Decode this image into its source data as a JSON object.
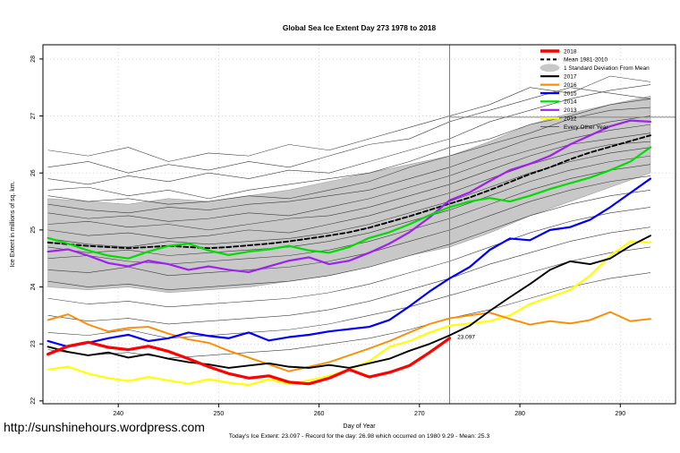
{
  "watermark": "http://sunshinehours.wordpress.com",
  "chart_data": {
    "type": "line",
    "title": "Global Sea Ice Extent Day 273 1978 to 2018",
    "xlabel": "Day of Year",
    "ylabel": "Ice Extent in millions of sq. km.",
    "caption": "Today's Ice Extent: 23.097  - Record for the day: 26.98 which occurred on 1980 9.29  - Mean: 25.3",
    "xlim": [
      232.5,
      295.5
    ],
    "ylim": [
      21.95,
      28.25
    ],
    "x_ticks": [
      240,
      250,
      260,
      270,
      280,
      290
    ],
    "y_ticks": [
      22,
      23,
      24,
      25,
      26,
      27,
      28
    ],
    "grid_style": "dotted",
    "legend_position": "top-right",
    "colors": {
      "grid": "#c9c9c9",
      "band_fill": "#c8c8c8",
      "band_edge": "#a0a0a0",
      "background_years": "#3d3d3d",
      "reference_line": "#808080",
      "annotation": "#ff0000"
    },
    "reference": {
      "vertical_line_day": 273,
      "record_line_value": 26.98
    },
    "annotation": {
      "text": "23.097",
      "day": 273.5,
      "value": 23.12
    },
    "x_start": 233,
    "x_step": 2,
    "series": [
      {
        "name": "2018",
        "color": "#ff0000",
        "width": 3.2,
        "values": [
          22.82,
          22.96,
          23.03,
          22.94,
          22.9,
          22.96,
          22.87,
          22.74,
          22.6,
          22.48,
          22.4,
          22.44,
          22.33,
          22.3,
          22.4,
          22.55,
          22.42,
          22.5,
          22.62,
          22.85,
          23.1
        ]
      },
      {
        "name": "Mean 1981-2010",
        "color": "#000000",
        "width": 1.9,
        "dash": "5,3",
        "values": [
          24.78,
          24.75,
          24.72,
          24.7,
          24.68,
          24.7,
          24.72,
          24.7,
          24.68,
          24.7,
          24.73,
          24.76,
          24.8,
          24.85,
          24.9,
          24.96,
          25.04,
          25.14,
          25.24,
          25.35,
          25.46,
          25.57,
          25.7,
          25.84,
          25.98,
          26.1,
          26.24,
          26.36,
          26.46,
          26.56,
          26.66
        ]
      },
      {
        "name": "2017",
        "color": "#000000",
        "width": 1.9,
        "values": [
          22.95,
          22.86,
          22.8,
          22.85,
          22.76,
          22.82,
          22.74,
          22.68,
          22.64,
          22.58,
          22.62,
          22.66,
          22.6,
          22.58,
          22.63,
          22.58,
          22.66,
          22.74,
          22.88,
          23.0,
          23.15,
          23.32,
          23.58,
          23.82,
          24.05,
          24.3,
          24.45,
          24.4,
          24.5,
          24.72,
          24.9
        ]
      },
      {
        "name": "2016",
        "color": "#ff8c00",
        "width": 1.9,
        "values": [
          23.42,
          23.52,
          23.34,
          23.22,
          23.28,
          23.3,
          23.18,
          23.08,
          23.02,
          22.88,
          22.76,
          22.64,
          22.52,
          22.6,
          22.68,
          22.8,
          22.92,
          23.05,
          23.2,
          23.35,
          23.45,
          23.5,
          23.55,
          23.44,
          23.34,
          23.4,
          23.36,
          23.42,
          23.56,
          23.4,
          23.44
        ]
      },
      {
        "name": "2015",
        "color": "#0000ff",
        "width": 2.2,
        "values": [
          23.05,
          22.95,
          23.02,
          23.1,
          23.16,
          23.05,
          23.1,
          23.2,
          23.14,
          23.1,
          23.2,
          23.06,
          23.12,
          23.16,
          23.22,
          23.26,
          23.3,
          23.42,
          23.66,
          23.92,
          24.15,
          24.35,
          24.65,
          24.85,
          24.82,
          25.0,
          25.05,
          25.18,
          25.4,
          25.65,
          25.9
        ]
      },
      {
        "name": "2014",
        "color": "#00dd00",
        "width": 2.2,
        "values": [
          24.86,
          24.76,
          24.64,
          24.55,
          24.5,
          24.62,
          24.72,
          24.76,
          24.64,
          24.56,
          24.62,
          24.66,
          24.72,
          24.64,
          24.6,
          24.7,
          24.86,
          24.96,
          25.1,
          25.26,
          25.4,
          25.5,
          25.56,
          25.5,
          25.6,
          25.72,
          25.82,
          25.92,
          26.05,
          26.2,
          26.45
        ]
      },
      {
        "name": "2013",
        "color": "#a020f0",
        "width": 2.2,
        "values": [
          24.62,
          24.66,
          24.55,
          24.42,
          24.36,
          24.46,
          24.4,
          24.3,
          24.36,
          24.3,
          24.26,
          24.36,
          24.46,
          24.52,
          24.4,
          24.46,
          24.6,
          24.76,
          24.96,
          25.22,
          25.52,
          25.66,
          25.86,
          26.05,
          26.16,
          26.3,
          26.5,
          26.66,
          26.82,
          26.92,
          26.9
        ]
      },
      {
        "name": "2012",
        "color": "#ffff00",
        "width": 2.2,
        "values": [
          22.55,
          22.6,
          22.48,
          22.4,
          22.35,
          22.42,
          22.36,
          22.3,
          22.38,
          22.32,
          22.28,
          22.38,
          22.3,
          22.36,
          22.44,
          22.55,
          22.7,
          22.95,
          23.05,
          23.2,
          23.32,
          23.36,
          23.4,
          23.5,
          23.7,
          23.82,
          23.95,
          24.2,
          24.55,
          24.8,
          24.78
        ]
      }
    ],
    "band": {
      "label": "1 Standard Deviation From Mean",
      "x_start": 233,
      "x_step": 4,
      "upper": [
        25.55,
        25.5,
        25.45,
        25.55,
        25.5,
        25.6,
        25.7,
        25.85,
        26.0,
        26.15,
        26.3,
        26.55,
        26.85,
        27.05,
        27.2,
        27.35
      ],
      "lower": [
        24.0,
        23.95,
        24.0,
        23.9,
        23.95,
        24.0,
        24.1,
        24.2,
        24.35,
        24.55,
        24.7,
        24.95,
        25.25,
        25.5,
        25.75,
        26.0
      ]
    },
    "background_years": {
      "label": "Every Other Year",
      "x_start": 233,
      "x_step": 4,
      "lines": [
        [
          26.4,
          26.3,
          26.45,
          26.2,
          26.35,
          26.3,
          26.5,
          26.4,
          26.6,
          26.8,
          27.0,
          27.2,
          27.5,
          27.4,
          27.7,
          27.6
        ],
        [
          26.1,
          26.2,
          26.0,
          26.15,
          26.05,
          26.2,
          26.1,
          26.3,
          26.5,
          26.6,
          26.9,
          27.1,
          27.3,
          27.5,
          27.4,
          27.3
        ],
        [
          25.9,
          25.8,
          25.95,
          25.85,
          26.0,
          25.9,
          26.05,
          26.0,
          26.2,
          26.4,
          26.6,
          26.9,
          27.1,
          27.3,
          27.45,
          27.55
        ],
        [
          25.7,
          25.75,
          25.6,
          25.7,
          25.55,
          25.7,
          25.8,
          25.9,
          26.0,
          26.2,
          26.45,
          26.6,
          26.85,
          27.0,
          27.2,
          27.3
        ],
        [
          25.6,
          25.5,
          25.55,
          25.45,
          25.5,
          25.6,
          25.55,
          25.7,
          25.85,
          26.1,
          26.3,
          26.5,
          26.7,
          26.95,
          27.1,
          27.15
        ],
        [
          25.45,
          25.35,
          25.3,
          25.4,
          25.35,
          25.45,
          25.5,
          25.6,
          25.7,
          25.9,
          26.1,
          26.35,
          26.6,
          26.75,
          26.9,
          27.0
        ],
        [
          25.3,
          25.2,
          25.25,
          25.15,
          25.2,
          25.3,
          25.25,
          25.4,
          25.55,
          25.75,
          25.95,
          26.2,
          26.4,
          26.6,
          26.75,
          26.85
        ],
        [
          25.1,
          25.15,
          25.05,
          25.1,
          25.0,
          25.1,
          25.2,
          25.25,
          25.4,
          25.6,
          25.8,
          26.05,
          26.3,
          26.5,
          26.6,
          26.7
        ],
        [
          25.0,
          24.9,
          24.95,
          24.85,
          24.9,
          25.0,
          24.95,
          25.1,
          25.25,
          25.45,
          25.65,
          25.9,
          26.15,
          26.35,
          26.5,
          26.55
        ],
        [
          24.85,
          24.75,
          24.7,
          24.8,
          24.75,
          24.8,
          24.85,
          24.95,
          25.1,
          25.3,
          25.5,
          25.75,
          26.0,
          26.2,
          26.35,
          26.45
        ],
        [
          24.7,
          24.6,
          24.65,
          24.55,
          24.6,
          24.65,
          24.7,
          24.8,
          24.95,
          25.15,
          25.35,
          25.6,
          25.85,
          26.05,
          26.2,
          26.3
        ],
        [
          24.5,
          24.55,
          24.45,
          24.4,
          24.45,
          24.5,
          24.55,
          24.65,
          24.8,
          25.0,
          25.2,
          25.45,
          25.7,
          25.9,
          26.05,
          26.15
        ],
        [
          24.3,
          24.25,
          24.35,
          24.2,
          24.25,
          24.3,
          24.35,
          24.45,
          24.6,
          24.8,
          25.0,
          25.25,
          25.5,
          25.7,
          25.85,
          25.95
        ],
        [
          24.1,
          24.0,
          24.05,
          23.95,
          24.0,
          24.05,
          24.1,
          24.2,
          24.35,
          24.55,
          24.75,
          25.0,
          25.25,
          25.45,
          25.6,
          25.7
        ],
        [
          23.8,
          23.7,
          23.75,
          23.65,
          23.7,
          23.75,
          23.8,
          23.9,
          24.05,
          24.25,
          24.45,
          24.7,
          24.95,
          25.15,
          25.3,
          25.4
        ],
        [
          23.5,
          23.4,
          23.45,
          23.35,
          23.4,
          23.45,
          23.5,
          23.6,
          23.75,
          23.95,
          24.15,
          24.4,
          24.6,
          24.8,
          24.95,
          25.05
        ],
        [
          23.2,
          23.15,
          23.25,
          23.1,
          23.15,
          23.2,
          23.25,
          23.35,
          23.5,
          23.65,
          23.85,
          24.05,
          24.25,
          24.45,
          24.6,
          24.7
        ],
        [
          22.9,
          22.8,
          22.85,
          22.75,
          22.8,
          22.85,
          22.9,
          23.0,
          23.1,
          23.25,
          23.45,
          23.6,
          23.8,
          24.0,
          24.15,
          24.25
        ]
      ]
    },
    "legend": [
      {
        "label": "2018",
        "swatch": "thick",
        "color": "#ff0000"
      },
      {
        "label": "Mean 1981-2010",
        "swatch": "dashed",
        "color": "#000000"
      },
      {
        "label": "1 Standard Deviation From Mean",
        "swatch": "band",
        "color": "#c8c8c8"
      },
      {
        "label": "2017",
        "swatch": "line",
        "color": "#000000"
      },
      {
        "label": "2016",
        "swatch": "line",
        "color": "#ff8c00"
      },
      {
        "label": "2015",
        "swatch": "line",
        "color": "#0000ff"
      },
      {
        "label": "2014",
        "swatch": "line",
        "color": "#00dd00"
      },
      {
        "label": "2013",
        "swatch": "line",
        "color": "#a020f0"
      },
      {
        "label": "2012",
        "swatch": "line",
        "color": "#ffff00"
      },
      {
        "label": "Every Other Year",
        "swatch": "thin",
        "color": "#3d3d3d"
      }
    ]
  }
}
